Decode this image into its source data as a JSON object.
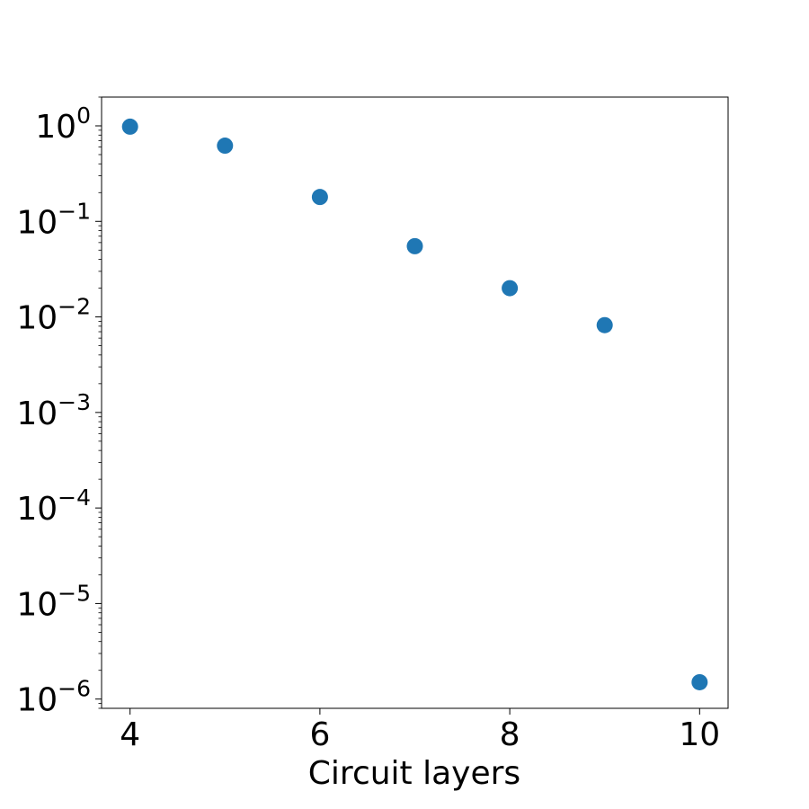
{
  "chart_data": {
    "type": "scatter",
    "title": "",
    "xlabel": "Circuit layers",
    "ylabel": "",
    "x": [
      4,
      5,
      6,
      7,
      8,
      9,
      10
    ],
    "y": [
      0.98,
      0.62,
      0.18,
      0.055,
      0.02,
      0.0082,
      1.5e-06
    ],
    "xlim": [
      3.7,
      10.3
    ],
    "ylim": [
      8e-07,
      2
    ],
    "yscale": "log",
    "x_ticks": [
      4,
      6,
      8,
      10
    ],
    "y_ticks": [
      {
        "base": "10",
        "exp": "0",
        "value": 1
      },
      {
        "base": "10",
        "exp": "−1",
        "value": 0.1
      },
      {
        "base": "10",
        "exp": "−2",
        "value": 0.01
      },
      {
        "base": "10",
        "exp": "−3",
        "value": 0.001
      },
      {
        "base": "10",
        "exp": "−4",
        "value": 0.0001
      },
      {
        "base": "10",
        "exp": "−5",
        "value": 1e-05
      },
      {
        "base": "10",
        "exp": "−6",
        "value": 1e-06
      }
    ],
    "marker_color": "#1f77b4",
    "grid": false,
    "legend": "none"
  }
}
